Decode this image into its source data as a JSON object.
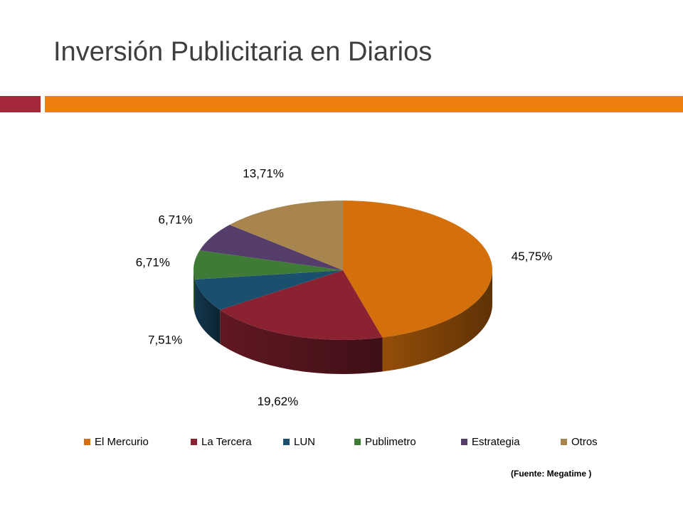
{
  "slide": {
    "title": "Inversión Publicitaria en Diarios",
    "source": "(Fuente: Megatime )",
    "accent_colors": {
      "red": "#a5283a",
      "orange": "#ee7f13"
    }
  },
  "chart_data": {
    "type": "pie",
    "style": "3d",
    "title": "",
    "legend_position": "bottom",
    "categories": [
      "El Mercurio",
      "La Tercera",
      "LUN",
      "Publimetro",
      "Estrategia",
      "Otros"
    ],
    "values": [
      45.75,
      19.62,
      7.51,
      6.71,
      6.71,
      13.71
    ],
    "labels": [
      "45,75%",
      "19,62%",
      "7,51%",
      "6,71%",
      "6,71%",
      "13,71%"
    ],
    "colors": [
      "#d4700b",
      "#8a2231",
      "#1b4f6e",
      "#3f7a36",
      "#553d6b",
      "#a8844e"
    ]
  }
}
